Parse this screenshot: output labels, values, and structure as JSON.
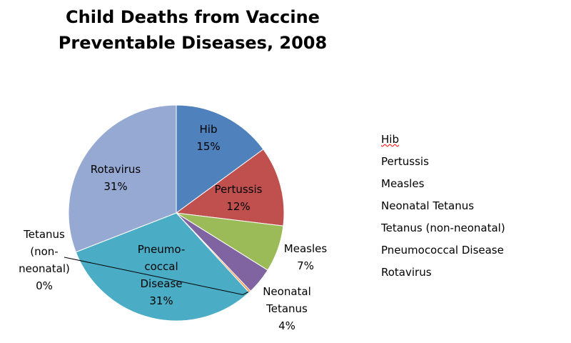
{
  "chart_data": {
    "type": "pie",
    "title_lines": [
      "Child Deaths from Vaccine",
      "Preventable Diseases, 2008"
    ],
    "legend_position": "right",
    "slices": [
      {
        "name": "Hib",
        "value": 15,
        "label_lines": [
          "Hib",
          "15%"
        ],
        "color": "#4F81BD"
      },
      {
        "name": "Pertussis",
        "value": 12,
        "label_lines": [
          "Pertussis",
          "12%"
        ],
        "color": "#C0504D"
      },
      {
        "name": "Measles",
        "value": 7,
        "label_lines": [
          "Measles",
          "7%"
        ],
        "color": "#9BBB59"
      },
      {
        "name": "Neonatal Tetanus",
        "value": 4,
        "label_lines": [
          "Neonatal",
          "Tetanus",
          "4%"
        ],
        "color": "#8064A2"
      },
      {
        "name": "Tetanus (non-neonatal)",
        "value": 0.3,
        "label_lines": [
          "Tetanus",
          "(non-",
          "neonatal)",
          "0%"
        ],
        "color": "#F79646"
      },
      {
        "name": "Pneumococcal Disease",
        "value": 31,
        "label_lines": [
          "Pneumo-",
          "coccal",
          "Disease",
          "31%"
        ],
        "color": "#4BACC6"
      },
      {
        "name": "Rotavirus",
        "value": 31,
        "label_lines": [
          "Rotavirus",
          "31%"
        ],
        "color": "#95A9D3"
      }
    ],
    "legend": [
      "Hib",
      "Pertussis",
      "Measles",
      "Neonatal Tetanus",
      "Tetanus (non-neonatal)",
      "Pneumococcal Disease",
      "Rotavirus"
    ]
  }
}
